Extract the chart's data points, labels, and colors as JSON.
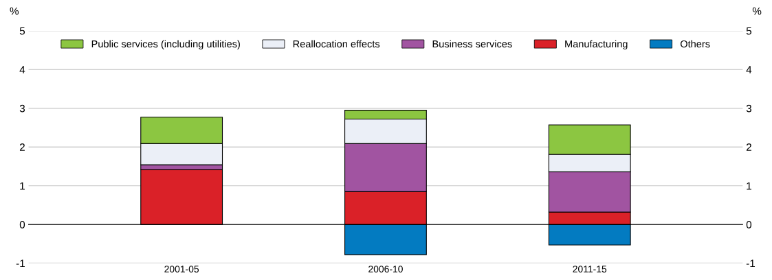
{
  "chart_data": {
    "type": "bar",
    "stacked": true,
    "categories": [
      "2001-05",
      "2006-10",
      "2011-15"
    ],
    "series": [
      {
        "name": "Others",
        "color": "#037bc1",
        "values": [
          null,
          -0.78,
          -0.53
        ]
      },
      {
        "name": "Manufacturing",
        "color": "#da2128",
        "values": [
          1.42,
          0.85,
          0.32
        ]
      },
      {
        "name": "Business services",
        "color": "#a154a1",
        "values": [
          0.12,
          1.24,
          1.04
        ]
      },
      {
        "name": "Reallocation effects",
        "color": "#ebeff7",
        "values": [
          0.55,
          0.63,
          0.45
        ]
      },
      {
        "name": "Public services (including utilities)",
        "color": "#8cc641",
        "values": [
          0.68,
          0.23,
          0.76
        ]
      }
    ],
    "ylabel": "%",
    "y2label": "%",
    "ylim": [
      -1,
      5
    ],
    "yticks": [
      -1,
      0,
      1,
      2,
      3,
      4,
      5
    ],
    "y2lim": [
      -1,
      5
    ],
    "y2ticks": [
      -1,
      0,
      1,
      2,
      3,
      4,
      5
    ],
    "grid": "y",
    "legend": "top"
  }
}
